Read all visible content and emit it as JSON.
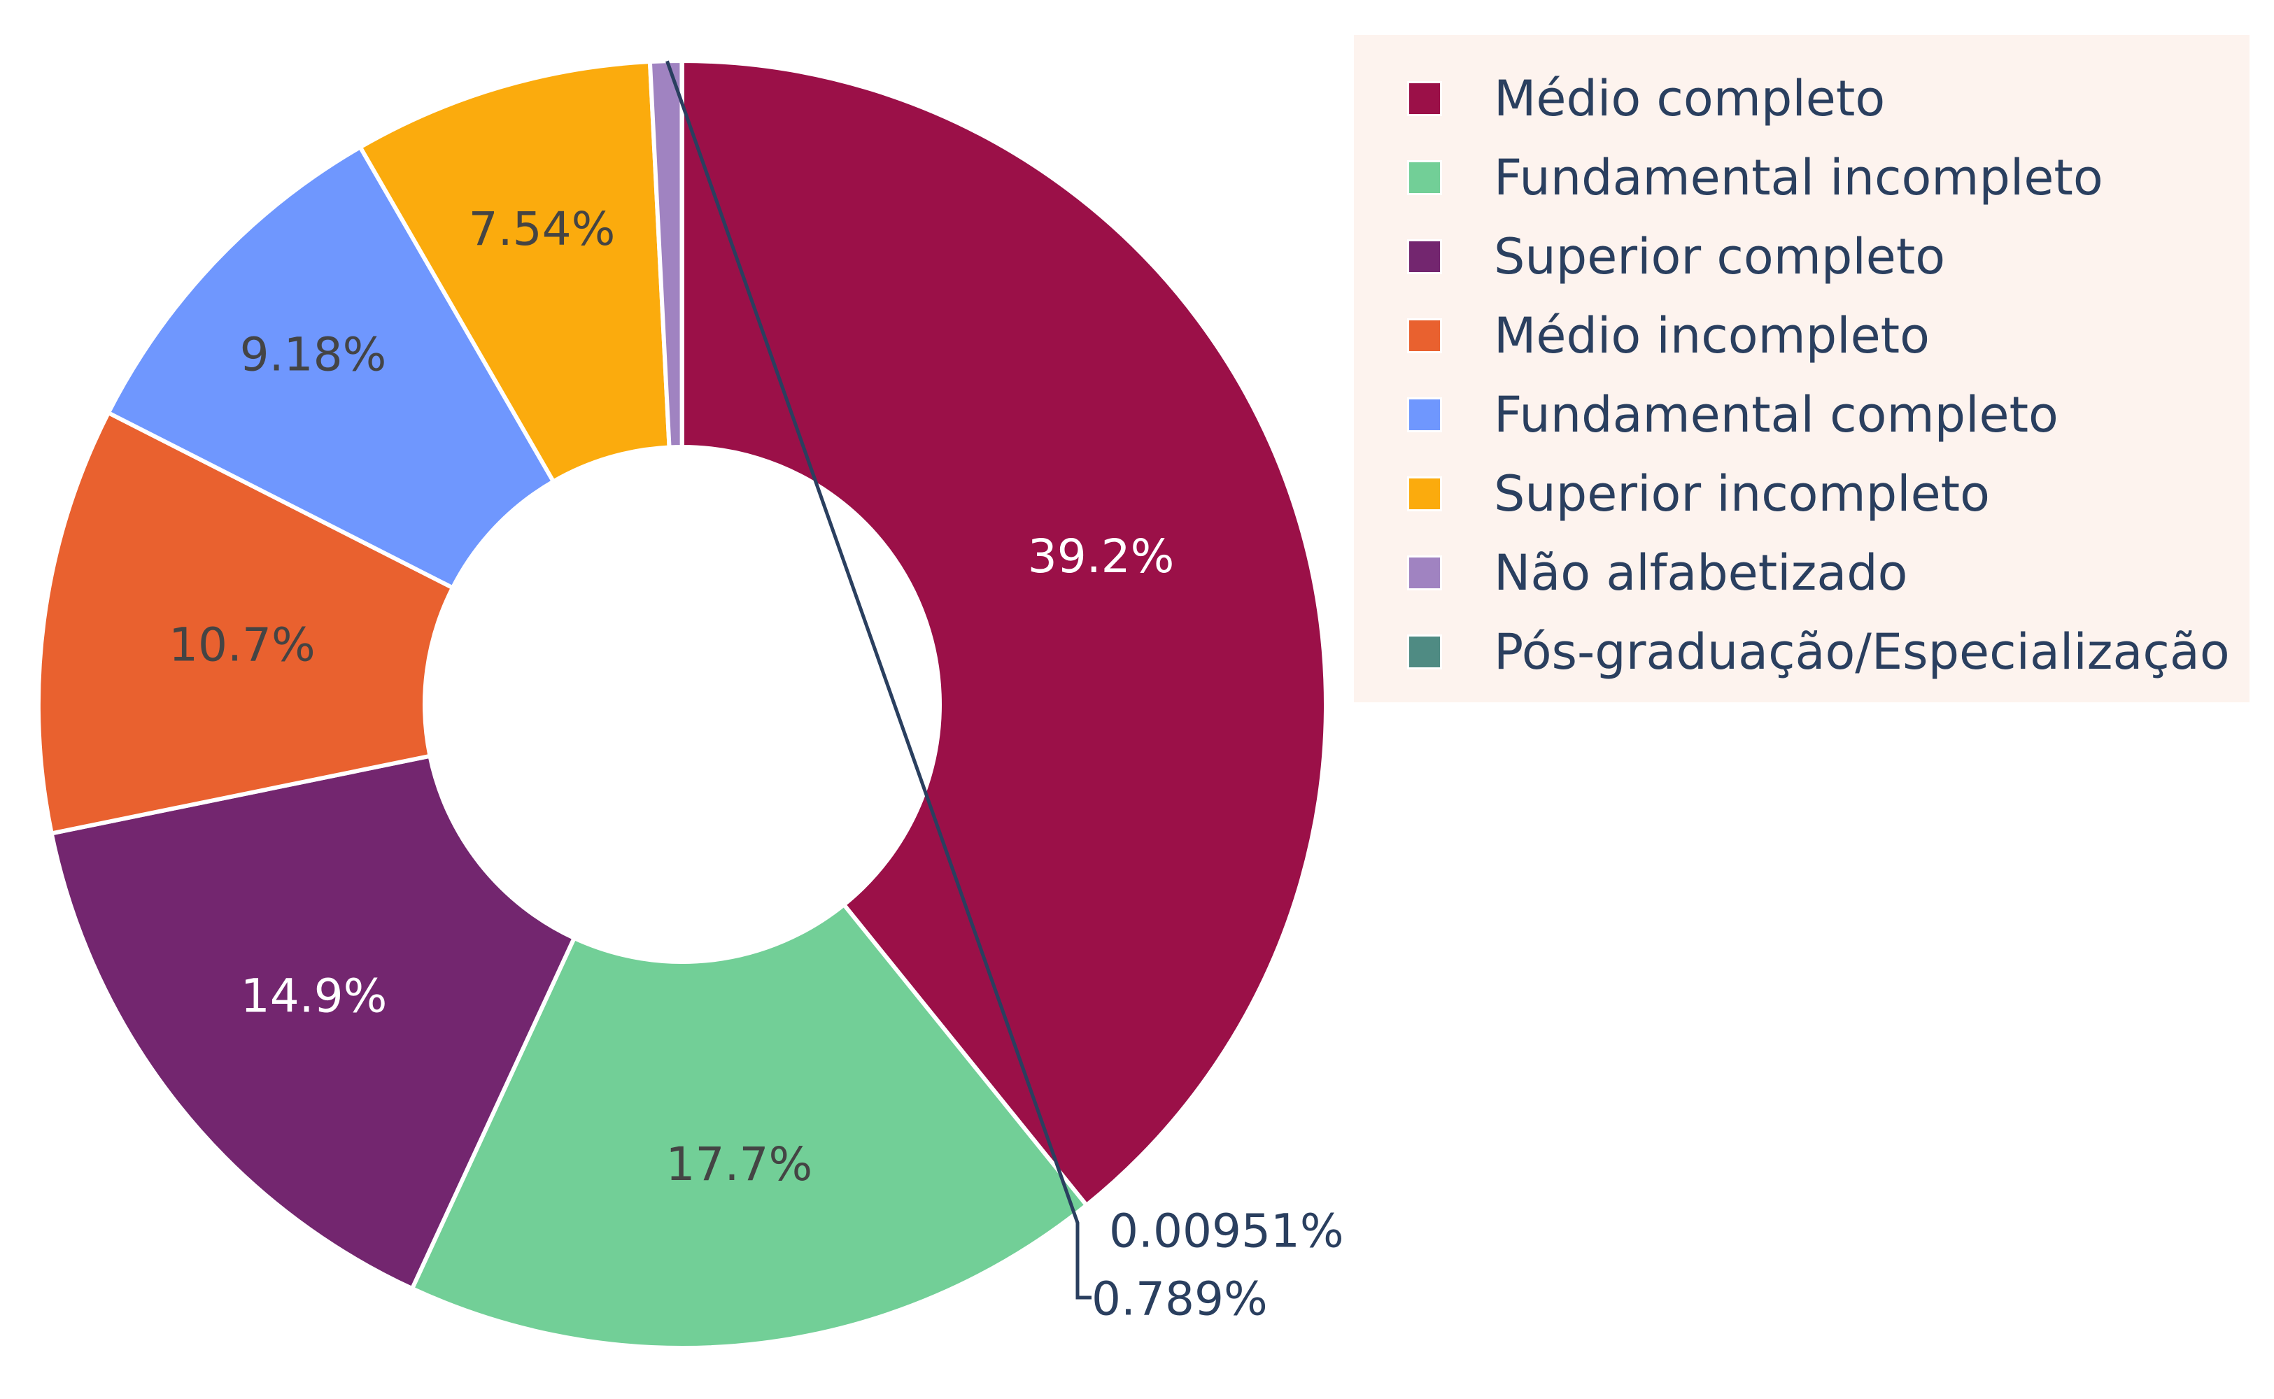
{
  "chart_data": {
    "type": "pie",
    "hole": 0.4,
    "categories": [
      "Médio completo",
      "Fundamental incompleto",
      "Superior completo",
      "Médio incompleto",
      "Fundamental completo",
      "Superior incompleto",
      "Não alfabetizado",
      "Pós-graduação/Especialização"
    ],
    "values": [
      39.2,
      17.7,
      14.9,
      10.7,
      9.18,
      7.54,
      0.789,
      0.00951
    ],
    "labels": [
      "39.2%",
      "17.7%",
      "14.9%",
      "10.7%",
      "9.18%",
      "7.54%",
      "0.789%",
      "0.00951%"
    ],
    "colors": [
      "#9b1048",
      "#72cf97",
      "#73266f",
      "#e9612f",
      "#6f97fe",
      "#fbab0d",
      "#a083c1",
      "#4f8b83"
    ],
    "label_text_colors": [
      "#ffffff",
      "#444444",
      "#ffffff",
      "#444444",
      "#444444",
      "#444444",
      "#2a3f5f",
      "#2a3f5f"
    ],
    "direction": "clockwise",
    "legend_position": "top-right",
    "legend_background": "#fdf3ee"
  }
}
